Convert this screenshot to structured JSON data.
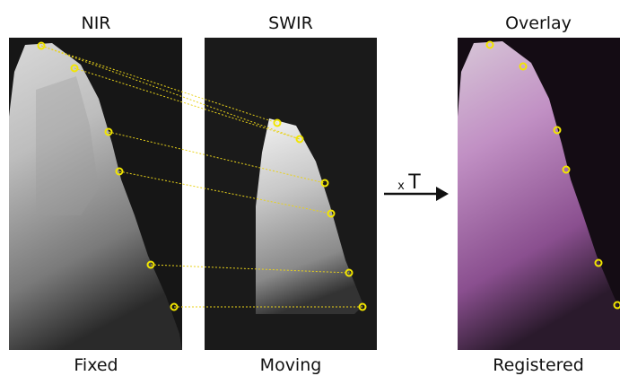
{
  "panels": [
    {
      "title": "NIR",
      "caption": "Fixed"
    },
    {
      "title": "SWIR",
      "caption": "Moving"
    },
    {
      "title": "Overlay",
      "caption": "Registered"
    }
  ],
  "transform": {
    "prefix": "x",
    "symbol": "T"
  }
}
